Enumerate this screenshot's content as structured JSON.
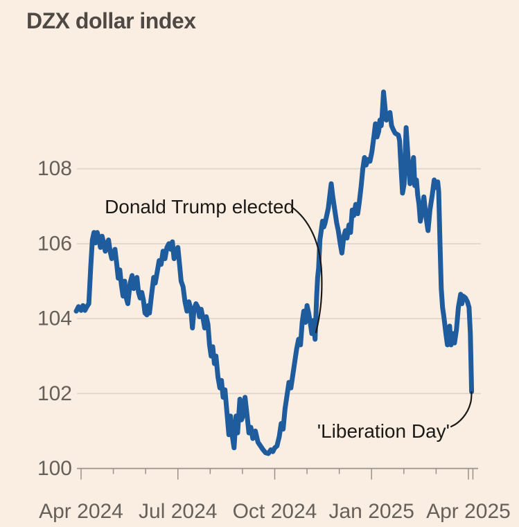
{
  "page": {
    "title": "DZX dollar index"
  },
  "colors": {
    "background": "#faeee2",
    "line": "#1e5c9e",
    "grid": "#dfd4c8",
    "axis": "#999088",
    "tick_label": "#66605a",
    "title_text": "#4e4944",
    "annotation_text": "#1b1916"
  },
  "chart_data": {
    "type": "line",
    "title": "DZX dollar index",
    "xlabel": "",
    "ylabel": "",
    "x_unit": "months since Apr 2024",
    "xlim": [
      -0.15,
      12.4
    ],
    "ylim": [
      99.6,
      110.7
    ],
    "grid": "horizontal only",
    "legend": "none",
    "x_tick_labels": [
      "Apr 2024",
      "Jul 2024",
      "Oct 2024",
      "Jan 2025",
      "Apr 2025"
    ],
    "x_tick_positions": [
      0,
      3,
      6,
      9,
      12
    ],
    "x_minor_tick_positions": [
      0,
      1,
      2,
      3,
      4,
      5,
      6,
      7,
      8,
      9,
      10,
      11,
      12
    ],
    "x_end_tick_position": 12.14,
    "y_ticks": [
      "100",
      "102",
      "104",
      "106",
      "108"
    ],
    "y_tick_values": [
      100,
      102,
      104,
      106,
      108
    ],
    "annotations": [
      {
        "id": "trump",
        "text": "Donald Trump elected",
        "points_to": {
          "x": 7.25,
          "value": 103.45
        }
      },
      {
        "id": "liberation",
        "text": "'Liberation Day'",
        "points_to": {
          "x": 12.1,
          "value": 102.05
        }
      }
    ],
    "series": [
      {
        "name": "DZX dollar index",
        "color": "#1e5c9e",
        "points": [
          [
            -0.15,
            104.2
          ],
          [
            -0.08,
            104.32
          ],
          [
            0,
            104.22
          ],
          [
            0.06,
            104.35
          ],
          [
            0.12,
            104.22
          ],
          [
            0.18,
            104.32
          ],
          [
            0.24,
            104.4
          ],
          [
            0.3,
            105.4
          ],
          [
            0.35,
            106.1
          ],
          [
            0.4,
            106.3
          ],
          [
            0.44,
            106.02
          ],
          [
            0.5,
            106.3
          ],
          [
            0.55,
            106.15
          ],
          [
            0.6,
            105.9
          ],
          [
            0.65,
            106.2
          ],
          [
            0.7,
            106.02
          ],
          [
            0.75,
            105.8
          ],
          [
            0.8,
            106
          ],
          [
            0.85,
            106.1
          ],
          [
            0.9,
            105.8
          ],
          [
            0.95,
            105.6
          ],
          [
            1,
            105.7
          ],
          [
            1.05,
            105.85
          ],
          [
            1.1,
            105.5
          ],
          [
            1.15,
            105.08
          ],
          [
            1.2,
            105.3
          ],
          [
            1.25,
            104.9
          ],
          [
            1.3,
            104.6
          ],
          [
            1.35,
            105
          ],
          [
            1.4,
            104.55
          ],
          [
            1.45,
            104.4
          ],
          [
            1.52,
            104.95
          ],
          [
            1.58,
            105.15
          ],
          [
            1.63,
            104.8
          ],
          [
            1.68,
            104.95
          ],
          [
            1.73,
            105.1
          ],
          [
            1.78,
            104.7
          ],
          [
            1.83,
            104.55
          ],
          [
            1.88,
            104.7
          ],
          [
            1.93,
            104.5
          ],
          [
            1.98,
            104.15
          ],
          [
            2.04,
            104.1
          ],
          [
            2.08,
            104.35
          ],
          [
            2.12,
            104.15
          ],
          [
            2.18,
            104.6
          ],
          [
            2.25,
            105.1
          ],
          [
            2.3,
            104.95
          ],
          [
            2.36,
            105.25
          ],
          [
            2.42,
            105.55
          ],
          [
            2.48,
            105.45
          ],
          [
            2.54,
            105.8
          ],
          [
            2.6,
            105.6
          ],
          [
            2.66,
            105.9
          ],
          [
            2.72,
            106
          ],
          [
            2.78,
            105.85
          ],
          [
            2.83,
            106.05
          ],
          [
            2.88,
            105.6
          ],
          [
            2.94,
            105.8
          ],
          [
            3,
            105.9
          ],
          [
            3.05,
            105.45
          ],
          [
            3.1,
            105
          ],
          [
            3.16,
            104.85
          ],
          [
            3.22,
            104.45
          ],
          [
            3.28,
            104.2
          ],
          [
            3.34,
            104.45
          ],
          [
            3.4,
            104.25
          ],
          [
            3.45,
            103.75
          ],
          [
            3.5,
            104.25
          ],
          [
            3.56,
            104.4
          ],
          [
            3.62,
            104.3
          ],
          [
            3.67,
            104.05
          ],
          [
            3.72,
            104.25
          ],
          [
            3.78,
            104
          ],
          [
            3.83,
            103.75
          ],
          [
            3.88,
            104.05
          ],
          [
            3.93,
            103.85
          ],
          [
            3.98,
            103.3
          ],
          [
            4.03,
            103
          ],
          [
            4.08,
            103.25
          ],
          [
            4.13,
            102.8
          ],
          [
            4.18,
            103
          ],
          [
            4.24,
            102.45
          ],
          [
            4.3,
            102.15
          ],
          [
            4.35,
            102.35
          ],
          [
            4.4,
            101.9
          ],
          [
            4.46,
            102.1
          ],
          [
            4.52,
            101.5
          ],
          [
            4.58,
            100.9
          ],
          [
            4.63,
            101.4
          ],
          [
            4.68,
            100.9
          ],
          [
            4.74,
            100.55
          ],
          [
            4.8,
            101.4
          ],
          [
            4.85,
            100.95
          ],
          [
            4.92,
            101.85
          ],
          [
            4.97,
            101.3
          ],
          [
            5.03,
            101.45
          ],
          [
            5.08,
            101.9
          ],
          [
            5.14,
            101.45
          ],
          [
            5.2,
            100.95
          ],
          [
            5.26,
            101.1
          ],
          [
            5.32,
            100.8
          ],
          [
            5.4,
            101
          ],
          [
            5.48,
            100.7
          ],
          [
            5.56,
            100.6
          ],
          [
            5.64,
            100.5
          ],
          [
            5.72,
            100.42
          ],
          [
            5.8,
            100.4
          ],
          [
            5.88,
            100.5
          ],
          [
            5.94,
            100.45
          ],
          [
            6,
            100.55
          ],
          [
            6.07,
            100.6
          ],
          [
            6.14,
            100.85
          ],
          [
            6.2,
            101.2
          ],
          [
            6.26,
            101.05
          ],
          [
            6.32,
            101.6
          ],
          [
            6.38,
            101.95
          ],
          [
            6.44,
            102.3
          ],
          [
            6.5,
            102.15
          ],
          [
            6.56,
            102.5
          ],
          [
            6.62,
            102.85
          ],
          [
            6.68,
            103.2
          ],
          [
            6.74,
            103.45
          ],
          [
            6.8,
            103.3
          ],
          [
            6.85,
            103.9
          ],
          [
            6.9,
            104.2
          ],
          [
            6.95,
            103.9
          ],
          [
            7,
            104.35
          ],
          [
            7.05,
            104.15
          ],
          [
            7.1,
            103.9
          ],
          [
            7.15,
            103.6
          ],
          [
            7.2,
            103.95
          ],
          [
            7.25,
            103.45
          ],
          [
            7.3,
            104.6
          ],
          [
            7.33,
            105.1
          ],
          [
            7.36,
            105.35
          ],
          [
            7.4,
            106.1
          ],
          [
            7.44,
            106.35
          ],
          [
            7.48,
            106.6
          ],
          [
            7.52,
            106.45
          ],
          [
            7.56,
            106.55
          ],
          [
            7.61,
            106.75
          ],
          [
            7.66,
            106.95
          ],
          [
            7.7,
            107.25
          ],
          [
            7.75,
            107.6
          ],
          [
            7.8,
            107.25
          ],
          [
            7.86,
            106.9
          ],
          [
            7.92,
            106.55
          ],
          [
            7.97,
            106.35
          ],
          [
            8.03,
            106
          ],
          [
            8.08,
            105.75
          ],
          [
            8.14,
            106.2
          ],
          [
            8.19,
            106.35
          ],
          [
            8.24,
            106.15
          ],
          [
            8.3,
            106.5
          ],
          [
            8.35,
            106.3
          ],
          [
            8.4,
            106.9
          ],
          [
            8.45,
            106.75
          ],
          [
            8.51,
            107.05
          ],
          [
            8.57,
            106.8
          ],
          [
            8.62,
            107.1
          ],
          [
            8.68,
            107.55
          ],
          [
            8.73,
            108
          ],
          [
            8.78,
            108.3
          ],
          [
            8.83,
            108.1
          ],
          [
            8.89,
            108.25
          ],
          [
            8.95,
            108.2
          ],
          [
            9.01,
            108.45
          ],
          [
            9.08,
            108.9
          ],
          [
            9.12,
            109.2
          ],
          [
            9.17,
            108.85
          ],
          [
            9.22,
            109
          ],
          [
            9.26,
            109.3
          ],
          [
            9.3,
            109.15
          ],
          [
            9.33,
            109.45
          ],
          [
            9.37,
            110.05
          ],
          [
            9.42,
            109.6
          ],
          [
            9.46,
            109.3
          ],
          [
            9.51,
            109.4
          ],
          [
            9.57,
            109.5
          ],
          [
            9.62,
            109.15
          ],
          [
            9.67,
            109.05
          ],
          [
            9.73,
            108.95
          ],
          [
            9.83,
            108.9
          ],
          [
            9.87,
            108.75
          ],
          [
            9.9,
            108.25
          ],
          [
            9.96,
            107.35
          ],
          [
            10.01,
            107.6
          ],
          [
            10.07,
            109.1
          ],
          [
            10.13,
            108.3
          ],
          [
            10.19,
            107.6
          ],
          [
            10.24,
            107.9
          ],
          [
            10.3,
            108.3
          ],
          [
            10.34,
            107.55
          ],
          [
            10.39,
            107.7
          ],
          [
            10.43,
            107.3
          ],
          [
            10.47,
            107.05
          ],
          [
            10.51,
            106.6
          ],
          [
            10.58,
            106.95
          ],
          [
            10.62,
            107.25
          ],
          [
            10.69,
            106.7
          ],
          [
            10.75,
            106.35
          ],
          [
            10.81,
            106.9
          ],
          [
            10.88,
            107.3
          ],
          [
            10.94,
            107.7
          ],
          [
            11,
            107.5
          ],
          [
            11.05,
            107.65
          ],
          [
            11.08,
            107.4
          ],
          [
            11.12,
            106
          ],
          [
            11.16,
            104.8
          ],
          [
            11.2,
            104.3
          ],
          [
            11.24,
            104.05
          ],
          [
            11.31,
            103.55
          ],
          [
            11.35,
            103.3
          ],
          [
            11.42,
            103.8
          ],
          [
            11.46,
            103.3
          ],
          [
            11.52,
            103.6
          ],
          [
            11.57,
            103.35
          ],
          [
            11.63,
            103.7
          ],
          [
            11.69,
            104.3
          ],
          [
            11.76,
            104.65
          ],
          [
            11.8,
            104.4
          ],
          [
            11.84,
            104.6
          ],
          [
            11.91,
            104.55
          ],
          [
            11.97,
            104.45
          ],
          [
            12.02,
            104.3
          ],
          [
            12.06,
            103.6
          ],
          [
            12.1,
            102.05
          ]
        ]
      }
    ]
  }
}
